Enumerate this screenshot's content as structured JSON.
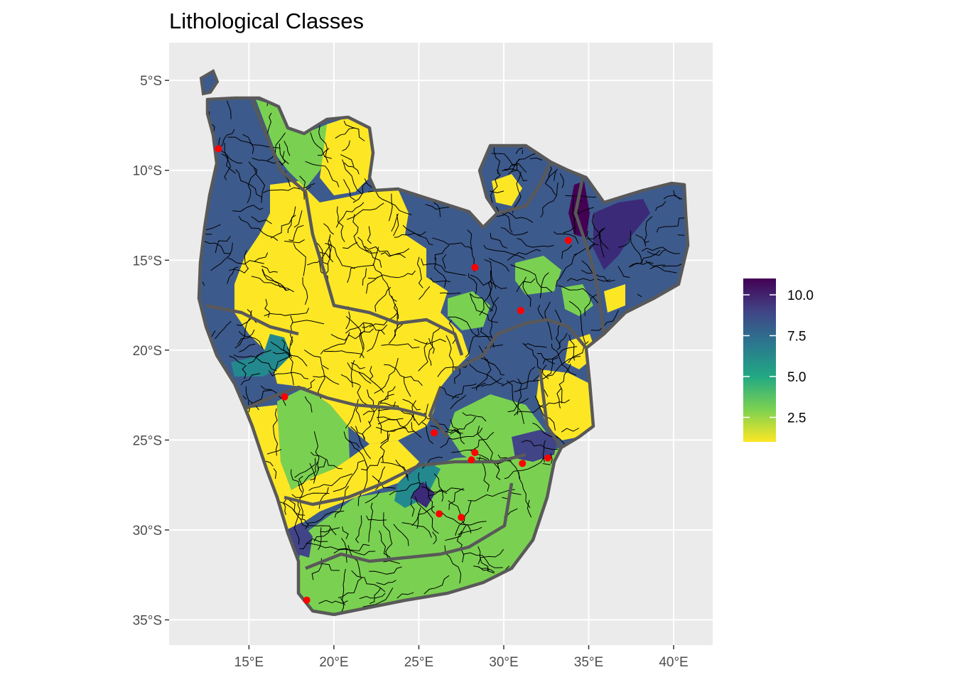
{
  "title": "Lithological Classes",
  "map": {
    "x_axis": {
      "ticks": [
        15,
        20,
        25,
        30,
        35,
        40
      ],
      "tick_labels": [
        "15°E",
        "20°E",
        "25°E",
        "30°E",
        "35°E",
        "40°E"
      ],
      "range": [
        10.3,
        42.3
      ]
    },
    "y_axis": {
      "ticks": [
        -5,
        -10,
        -15,
        -20,
        -25,
        -30,
        -35
      ],
      "tick_labels": [
        "5°S",
        "10°S",
        "15°S",
        "20°S",
        "25°S",
        "30°S",
        "35°S"
      ],
      "range": [
        -36.4,
        -2.9
      ]
    },
    "panel_background": "#ebebeb",
    "grid_color": "#ffffff",
    "basin_border_color": "#595959",
    "river_color": "#000000",
    "gauge_color": "#ff0000",
    "gauge_points": [
      {
        "lon": 13.2,
        "lat": -8.8
      },
      {
        "lon": 17.1,
        "lat": -22.6
      },
      {
        "lon": 28.3,
        "lat": -15.4
      },
      {
        "lon": 33.8,
        "lat": -13.9
      },
      {
        "lon": 31.0,
        "lat": -17.8
      },
      {
        "lon": 25.9,
        "lat": -24.6
      },
      {
        "lon": 28.3,
        "lat": -25.7
      },
      {
        "lon": 28.1,
        "lat": -26.1
      },
      {
        "lon": 31.1,
        "lat": -26.3
      },
      {
        "lon": 32.6,
        "lat": -26.0
      },
      {
        "lon": 26.2,
        "lat": -29.1
      },
      {
        "lon": 27.5,
        "lat": -29.3
      },
      {
        "lon": 18.4,
        "lat": -33.9
      }
    ]
  },
  "legend": {
    "type": "colorbar",
    "palette": "viridis",
    "direction": "reversed",
    "min": 1,
    "max": 11,
    "breaks": [
      10.0,
      7.5,
      5.0,
      2.5
    ],
    "labels": [
      "10.0",
      "7.5",
      "5.0",
      "2.5"
    ],
    "colors": [
      "#fde725",
      "#7ad151",
      "#22a884",
      "#2a788e",
      "#414487",
      "#440154"
    ]
  }
}
